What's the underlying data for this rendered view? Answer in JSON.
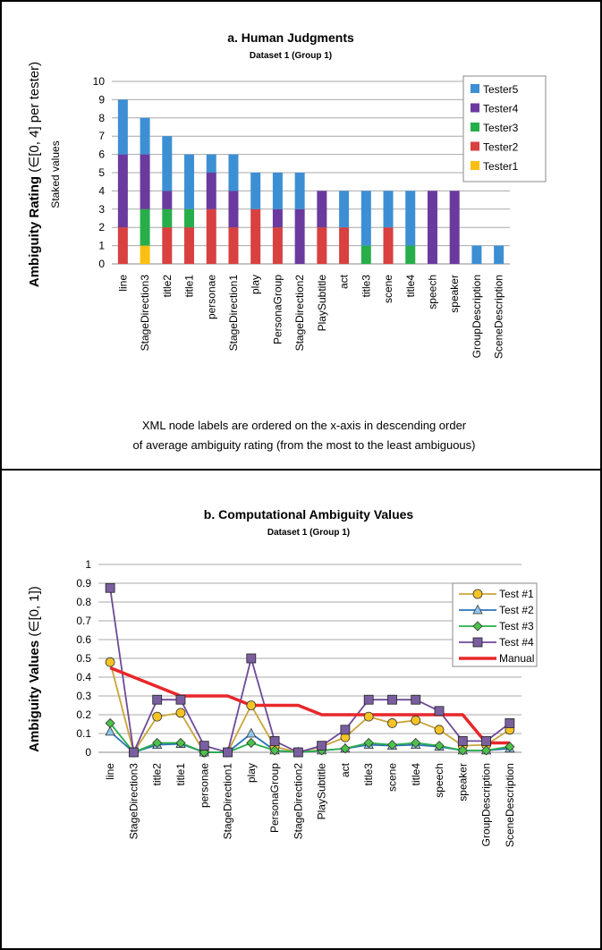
{
  "colors": {
    "Tester1": "#fbbf12",
    "Tester2": "#d94040",
    "Tester3": "#27ae4a",
    "Tester4": "#6a3a9e",
    "Tester5": "#3d8fd4",
    "Test #1": "#c9a43a",
    "Test #2": "#2d72b8",
    "Test #3": "#27ae4a",
    "Test #4": "#6e4a98",
    "Manual": "#e8272a",
    "marker_t1": "#f5c325",
    "marker_t2": "#8fc6ec",
    "marker_t3": "#4cc24a",
    "marker_t4": "#7a5fa0"
  },
  "note": {
    "line1": "XML node labels are ordered on the x-axis in descending order",
    "line2": "of average ambiguity rating (from the most to the least ambiguous)"
  },
  "chart_data": [
    {
      "type": "bar",
      "stacked": true,
      "title": "a. Human Judgments",
      "subtitle": "Dataset 1 (Group 1)",
      "ylabel_main": "Ambiguity Rating",
      "ylabel_range": " (∈[0, 4] per tester)",
      "ylabel_sub": "Staked values",
      "ylim": [
        0,
        10
      ],
      "yticks": [
        0,
        1,
        2,
        3,
        4,
        5,
        6,
        7,
        8,
        9,
        10
      ],
      "grid": true,
      "legend_position": "top-right",
      "legend_order": [
        "Tester5",
        "Tester4",
        "Tester3",
        "Tester2",
        "Tester1"
      ],
      "categories": [
        "line",
        "StageDirection3",
        "title2",
        "title1",
        "personae",
        "StageDirection1",
        "play",
        "PersonaGroup",
        "StageDirection2",
        "PlaySubtitle",
        "act",
        "title3",
        "scene",
        "title4",
        "speech",
        "speaker",
        "GroupDescription",
        "SceneDescription"
      ],
      "series": [
        {
          "name": "Tester1",
          "values": [
            0,
            1,
            0,
            0,
            0,
            0,
            0,
            0,
            0,
            0,
            0,
            0,
            0,
            0,
            0,
            0,
            0,
            0
          ]
        },
        {
          "name": "Tester2",
          "values": [
            2,
            0,
            2,
            2,
            3,
            2,
            3,
            2,
            0,
            2,
            2,
            0,
            2,
            0,
            0,
            0,
            0,
            0
          ]
        },
        {
          "name": "Tester3",
          "values": [
            0,
            2,
            1,
            1,
            0,
            0,
            0,
            0,
            0,
            0,
            0,
            1,
            0,
            1,
            0,
            0,
            0,
            0
          ]
        },
        {
          "name": "Tester4",
          "values": [
            4,
            3,
            1,
            0,
            2,
            2,
            0,
            1,
            3,
            2,
            0,
            0,
            0,
            0,
            4,
            4,
            0,
            0
          ]
        },
        {
          "name": "Tester5",
          "values": [
            3,
            2,
            3,
            3,
            1,
            2,
            2,
            2,
            2,
            0,
            2,
            3,
            2,
            3,
            0,
            0,
            1,
            1
          ]
        }
      ]
    },
    {
      "type": "line",
      "title": "b. Computational Ambiguity Values",
      "subtitle": "Dataset 1 (Group 1)",
      "ylabel_main": "Ambiguity Values",
      "ylabel_range": " (∈[0, 1])",
      "ylim": [
        0,
        1
      ],
      "yticks": [
        "0",
        "0.1",
        "0.2",
        "0.3",
        "0.4",
        "0.5",
        "0.6",
        "0.7",
        "0.8",
        "0.9",
        "1"
      ],
      "grid": true,
      "legend_position": "top-right",
      "categories": [
        "line",
        "StageDirection3",
        "title2",
        "title1",
        "personae",
        "StageDirection1",
        "play",
        "PersonaGroup",
        "StageDirection2",
        "PlaySubtitle",
        "act",
        "title3",
        "scene",
        "title4",
        "speech",
        "speaker",
        "GroupDescription",
        "SceneDescription"
      ],
      "series": [
        {
          "name": "Test #1",
          "marker": "circle",
          "values": [
            0.48,
            0,
            0.19,
            0.21,
            0,
            0,
            0.25,
            0.03,
            0,
            0.03,
            0.08,
            0.19,
            0.155,
            0.17,
            0.12,
            0.035,
            0.04,
            0.12
          ]
        },
        {
          "name": "Test #2",
          "marker": "triangle",
          "values": [
            0.11,
            0,
            0.04,
            0.045,
            0,
            0,
            0.1,
            0.01,
            0,
            0.01,
            0.02,
            0.04,
            0.035,
            0.04,
            0.03,
            0.01,
            0.01,
            0.02
          ]
        },
        {
          "name": "Test #3",
          "marker": "diamond",
          "values": [
            0.155,
            0,
            0.05,
            0.05,
            0,
            0,
            0.05,
            0.01,
            0,
            0.01,
            0.02,
            0.05,
            0.04,
            0.05,
            0.035,
            0.01,
            0.01,
            0.03
          ]
        },
        {
          "name": "Test #4",
          "marker": "square",
          "values": [
            0.875,
            0,
            0.28,
            0.28,
            0.035,
            0,
            0.5,
            0.06,
            0,
            0.035,
            0.12,
            0.28,
            0.28,
            0.28,
            0.22,
            0.06,
            0.06,
            0.155
          ]
        },
        {
          "name": "Manual",
          "marker": "none",
          "values": [
            0.45,
            0.4,
            0.35,
            0.3,
            0.3,
            0.3,
            0.25,
            0.25,
            0.25,
            0.2,
            0.2,
            0.2,
            0.2,
            0.2,
            0.2,
            0.2,
            0.05,
            0.05
          ]
        }
      ]
    }
  ]
}
